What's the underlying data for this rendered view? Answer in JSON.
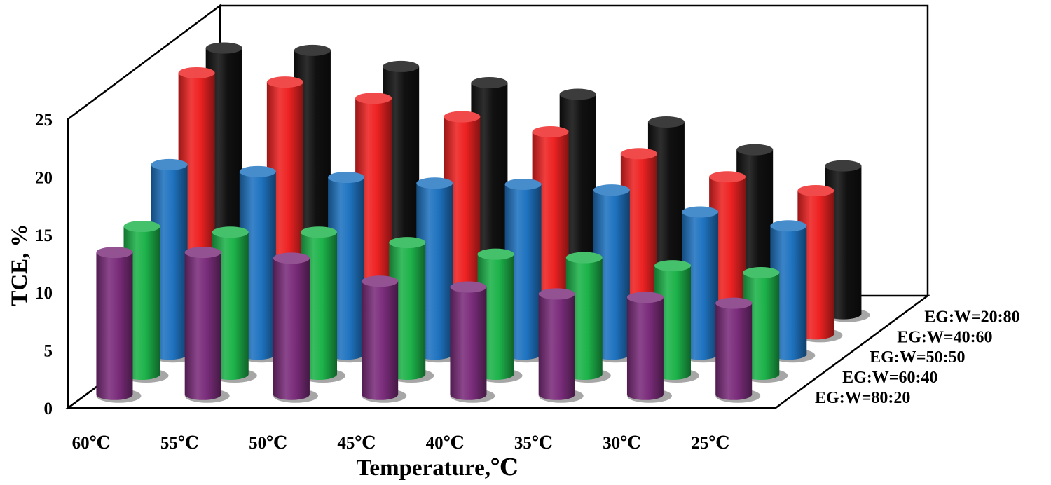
{
  "chart_data": {
    "type": "bar",
    "subtype": "3d-column",
    "title": "",
    "xlabel": "Temperature,℃",
    "ylabel": "TCE, %",
    "ylim": [
      0,
      25
    ],
    "yticks": [
      "0",
      "5",
      "10",
      "15",
      "20",
      "25"
    ],
    "categories": [
      "60℃",
      "55℃",
      "50℃",
      "45℃",
      "40℃",
      "35℃",
      "30℃",
      "25℃"
    ],
    "series": [
      {
        "name": "EG:W=80:20",
        "color": "#7b2d7b",
        "values": [
          12.3,
          12.3,
          11.8,
          9.8,
          9.3,
          8.7,
          8.4,
          7.9
        ]
      },
      {
        "name": "EG:W=60:40",
        "color": "#1db34a",
        "values": [
          12.8,
          12.3,
          12.3,
          11.4,
          10.4,
          10.1,
          9.4,
          8.8
        ]
      },
      {
        "name": "EG:W=50:50",
        "color": "#1f73c0",
        "values": [
          16.4,
          15.8,
          15.3,
          14.8,
          14.7,
          14.2,
          12.3,
          11.1
        ]
      },
      {
        "name": "EG:W=40:60",
        "color": "#ee2222",
        "values": [
          22.6,
          21.8,
          20.4,
          18.8,
          17.5,
          15.6,
          13.6,
          12.4
        ]
      },
      {
        "name": "EG:W=20:80",
        "color": "#111111",
        "values": [
          23.0,
          22.8,
          21.4,
          20.0,
          19.0,
          16.6,
          14.2,
          12.8
        ]
      }
    ]
  }
}
